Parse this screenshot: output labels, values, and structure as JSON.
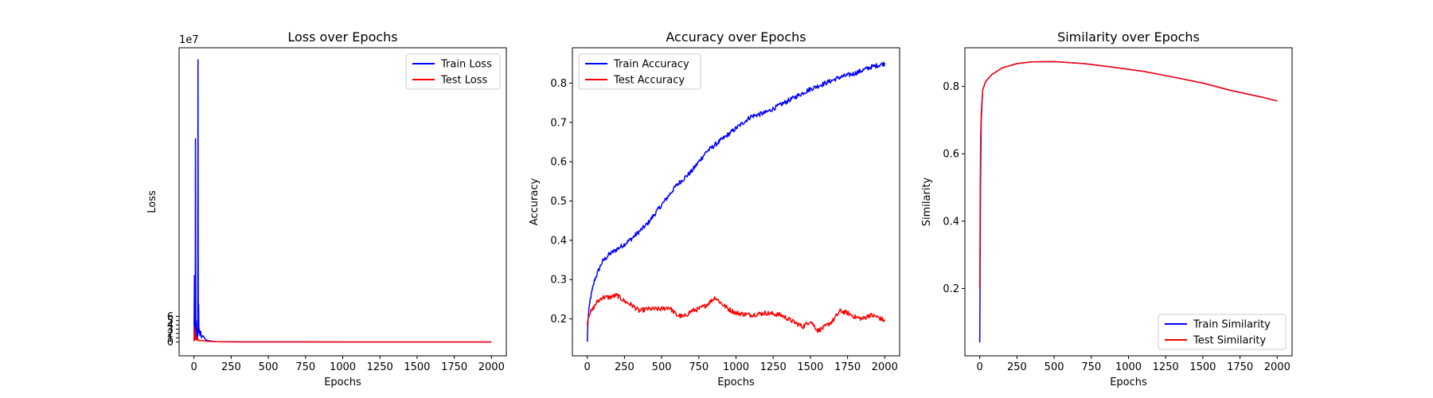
{
  "chart_data": [
    {
      "type": "line",
      "title": "Loss over Epochs",
      "xlabel": "Epochs",
      "ylabel": "Loss",
      "offset_text": "1e7",
      "xlim": [
        -100,
        2100
      ],
      "ylim": [
        -3.2,
        68.5
      ],
      "xticks": [
        0,
        250,
        500,
        750,
        1000,
        1250,
        1500,
        1750,
        2000
      ],
      "xtick_labels": [
        "0",
        "250",
        "500",
        "750",
        "1000",
        "1250",
        "1500",
        "1750",
        "2000"
      ],
      "yticks": [
        0,
        1,
        2,
        3,
        4,
        5,
        6
      ],
      "ytick_labels": [
        "0",
        "1",
        "2",
        "3",
        "4",
        "5",
        "6"
      ],
      "legend": "top-right",
      "series": [
        {
          "name": "Train Loss",
          "color": "#0000ff",
          "points": [
            [
              0,
              0.3
            ],
            [
              3,
              15.5
            ],
            [
              5,
              2.0
            ],
            [
              8,
              1.0
            ],
            [
              10,
              47.3
            ],
            [
              12,
              3.0
            ],
            [
              15,
              5.0
            ],
            [
              18,
              1.0
            ],
            [
              20,
              2.0
            ],
            [
              22,
              0.5
            ],
            [
              25,
              1.5
            ],
            [
              27,
              65.7
            ],
            [
              29,
              2.0
            ],
            [
              31,
              8.8
            ],
            [
              33,
              2.5
            ],
            [
              36,
              3.0
            ],
            [
              40,
              1.5
            ],
            [
              45,
              2.5
            ],
            [
              50,
              1.0
            ],
            [
              60,
              1.5
            ],
            [
              70,
              1.0
            ],
            [
              80,
              0.5
            ],
            [
              100,
              0.3
            ],
            [
              150,
              0.1
            ],
            [
              300,
              0.05
            ],
            [
              1000,
              0.02
            ],
            [
              2000,
              0.01
            ]
          ]
        },
        {
          "name": "Test Loss",
          "color": "#ff0000",
          "points": [
            [
              0,
              0.2
            ],
            [
              2,
              3.5
            ],
            [
              4,
              1.0
            ],
            [
              6,
              2.5
            ],
            [
              8,
              0.5
            ],
            [
              12,
              1.5
            ],
            [
              18,
              0.4
            ],
            [
              25,
              0.8
            ],
            [
              35,
              0.3
            ],
            [
              50,
              0.4
            ],
            [
              80,
              0.2
            ],
            [
              150,
              0.1
            ],
            [
              300,
              0.05
            ],
            [
              1000,
              0.03
            ],
            [
              2000,
              0.02
            ]
          ]
        }
      ]
    },
    {
      "type": "line",
      "title": "Accuracy over Epochs",
      "xlabel": "Epochs",
      "ylabel": "Accuracy",
      "xlim": [
        -100,
        2100
      ],
      "ylim": [
        0.106,
        0.89
      ],
      "xticks": [
        0,
        250,
        500,
        750,
        1000,
        1250,
        1500,
        1750,
        2000
      ],
      "xtick_labels": [
        "0",
        "250",
        "500",
        "750",
        "1000",
        "1250",
        "1500",
        "1750",
        "2000"
      ],
      "yticks": [
        0.2,
        0.3,
        0.4,
        0.5,
        0.6,
        0.7,
        0.8
      ],
      "ytick_labels": [
        "0.2",
        "0.3",
        "0.4",
        "0.5",
        "0.6",
        "0.7",
        "0.8"
      ],
      "legend": "top-left",
      "series": [
        {
          "name": "Train Accuracy",
          "color": "#0000ff",
          "noise": 0.006,
          "points": [
            [
              0,
              0.14
            ],
            [
              5,
              0.2
            ],
            [
              20,
              0.25
            ],
            [
              50,
              0.3
            ],
            [
              100,
              0.345
            ],
            [
              150,
              0.365
            ],
            [
              250,
              0.39
            ],
            [
              300,
              0.405
            ],
            [
              400,
              0.44
            ],
            [
              500,
              0.49
            ],
            [
              600,
              0.54
            ],
            [
              700,
              0.575
            ],
            [
              750,
              0.6
            ],
            [
              800,
              0.625
            ],
            [
              900,
              0.655
            ],
            [
              1000,
              0.685
            ],
            [
              1100,
              0.715
            ],
            [
              1200,
              0.725
            ],
            [
              1300,
              0.745
            ],
            [
              1400,
              0.765
            ],
            [
              1500,
              0.785
            ],
            [
              1600,
              0.8
            ],
            [
              1700,
              0.815
            ],
            [
              1800,
              0.825
            ],
            [
              1900,
              0.84
            ],
            [
              2000,
              0.85
            ]
          ]
        },
        {
          "name": "Test Accuracy",
          "color": "#ff0000",
          "noise": 0.006,
          "points": [
            [
              0,
              0.19
            ],
            [
              10,
              0.21
            ],
            [
              30,
              0.22
            ],
            [
              60,
              0.24
            ],
            [
              100,
              0.255
            ],
            [
              150,
              0.255
            ],
            [
              200,
              0.26
            ],
            [
              250,
              0.245
            ],
            [
              300,
              0.235
            ],
            [
              350,
              0.22
            ],
            [
              400,
              0.225
            ],
            [
              500,
              0.225
            ],
            [
              550,
              0.23
            ],
            [
              600,
              0.21
            ],
            [
              650,
              0.205
            ],
            [
              700,
              0.22
            ],
            [
              750,
              0.225
            ],
            [
              800,
              0.235
            ],
            [
              860,
              0.255
            ],
            [
              900,
              0.24
            ],
            [
              950,
              0.225
            ],
            [
              1000,
              0.215
            ],
            [
              1100,
              0.21
            ],
            [
              1200,
              0.215
            ],
            [
              1300,
              0.21
            ],
            [
              1350,
              0.2
            ],
            [
              1400,
              0.19
            ],
            [
              1450,
              0.18
            ],
            [
              1500,
              0.195
            ],
            [
              1550,
              0.17
            ],
            [
              1600,
              0.18
            ],
            [
              1650,
              0.195
            ],
            [
              1700,
              0.22
            ],
            [
              1750,
              0.215
            ],
            [
              1800,
              0.205
            ],
            [
              1850,
              0.2
            ],
            [
              1900,
              0.21
            ],
            [
              1950,
              0.205
            ],
            [
              2000,
              0.195
            ]
          ]
        }
      ]
    },
    {
      "type": "line",
      "title": "Similarity over Epochs",
      "xlabel": "Epochs",
      "ylabel": "Similarity",
      "xlim": [
        -100,
        2100
      ],
      "ylim": [
        0.0,
        0.915
      ],
      "xticks": [
        0,
        250,
        500,
        750,
        1000,
        1250,
        1500,
        1750,
        2000
      ],
      "xtick_labels": [
        "0",
        "250",
        "500",
        "750",
        "1000",
        "1250",
        "1500",
        "1750",
        "2000"
      ],
      "yticks": [
        0.2,
        0.4,
        0.6,
        0.8
      ],
      "ytick_labels": [
        "0.2",
        "0.4",
        "0.6",
        "0.8"
      ],
      "legend": "bottom-right",
      "series": [
        {
          "name": "Train Similarity",
          "color": "#0000ff",
          "points": [
            [
              0,
              0.04
            ],
            [
              2,
              0.2
            ],
            [
              5,
              0.5
            ],
            [
              10,
              0.7
            ],
            [
              20,
              0.79
            ],
            [
              40,
              0.815
            ],
            [
              80,
              0.835
            ],
            [
              150,
              0.855
            ],
            [
              250,
              0.868
            ],
            [
              350,
              0.873
            ],
            [
              500,
              0.874
            ],
            [
              700,
              0.868
            ],
            [
              900,
              0.857
            ],
            [
              1100,
              0.845
            ],
            [
              1300,
              0.828
            ],
            [
              1500,
              0.81
            ],
            [
              1700,
              0.787
            ],
            [
              1900,
              0.768
            ],
            [
              2000,
              0.757
            ]
          ]
        },
        {
          "name": "Test Similarity",
          "color": "#ff0000",
          "points": [
            [
              0,
              0.2
            ],
            [
              3,
              0.5
            ],
            [
              6,
              0.65
            ],
            [
              10,
              0.72
            ],
            [
              20,
              0.79
            ],
            [
              40,
              0.815
            ],
            [
              80,
              0.835
            ],
            [
              150,
              0.855
            ],
            [
              250,
              0.868
            ],
            [
              350,
              0.873
            ],
            [
              500,
              0.874
            ],
            [
              700,
              0.868
            ],
            [
              900,
              0.857
            ],
            [
              1100,
              0.845
            ],
            [
              1300,
              0.828
            ],
            [
              1500,
              0.81
            ],
            [
              1700,
              0.787
            ],
            [
              1900,
              0.768
            ],
            [
              2000,
              0.757
            ]
          ]
        }
      ]
    }
  ]
}
